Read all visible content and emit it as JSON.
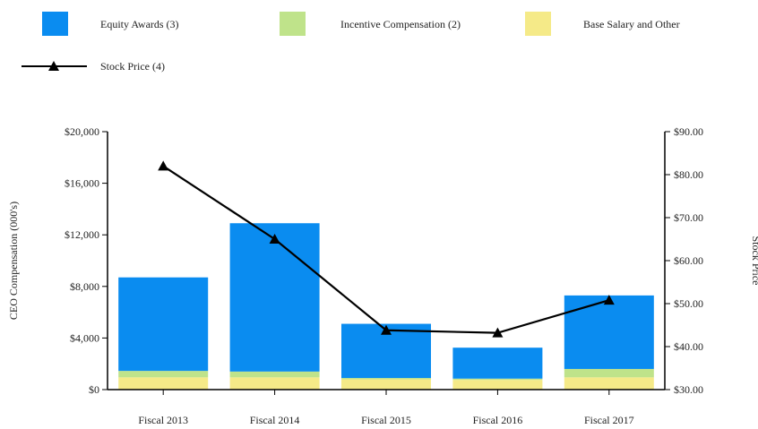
{
  "chart_data": {
    "type": "bar",
    "stacked": true,
    "categories": [
      "Fiscal 2013",
      "Fiscal 2014",
      "Fiscal 2015",
      "Fiscal 2016",
      "Fiscal 2017"
    ],
    "series": [
      {
        "name": "Base Salary and Other",
        "color": "#f5ea88",
        "values": [
          950,
          950,
          800,
          750,
          950
        ]
      },
      {
        "name": "Incentive Compensation (2)",
        "color": "#bfe38a",
        "values": [
          500,
          450,
          100,
          100,
          650
        ]
      },
      {
        "name": "Equity Awards (3)",
        "color": "#0a8cf0",
        "values": [
          7250,
          11500,
          4200,
          2400,
          5700
        ]
      }
    ],
    "line_series": {
      "name": "Stock Price (4)",
      "color": "#000000",
      "marker": "triangle",
      "axis": "right",
      "values": [
        82.0,
        65.0,
        43.8,
        43.2,
        50.8
      ]
    },
    "left_axis": {
      "label": "CEO Compensation (000's)",
      "ylim": [
        0,
        20000
      ],
      "ticks": [
        0,
        4000,
        8000,
        12000,
        16000,
        20000
      ],
      "tick_labels": [
        "$0",
        "$4,000",
        "$8,000",
        "$12,000",
        "$16,000",
        "$20,000"
      ]
    },
    "right_axis": {
      "label": "Stock Price",
      "ylim": [
        30,
        90
      ],
      "ticks": [
        30,
        40,
        50,
        60,
        70,
        80,
        90
      ],
      "tick_labels": [
        "$30.00",
        "$40.00",
        "$50.00",
        "$60.00",
        "$70.00",
        "$80.00",
        "$90.00"
      ]
    },
    "legend": {
      "placement": "top",
      "entries": [
        "Equity Awards (3)",
        "Incentive Compensation (2)",
        "Base Salary and Other",
        "Stock Price (4)"
      ]
    },
    "grid": false
  }
}
